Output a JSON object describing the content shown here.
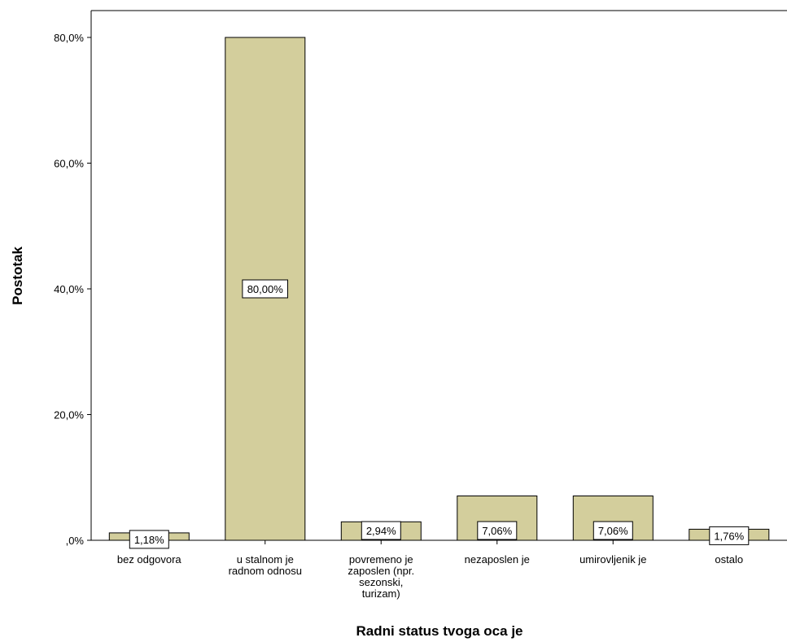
{
  "chart_data": {
    "type": "bar",
    "xlabel": "Radni status tvoga oca je",
    "ylabel": "Postotak",
    "ylim": [
      0,
      80
    ],
    "yticks": [
      {
        "value": 0,
        "label": ",0%"
      },
      {
        "value": 20,
        "label": "20,0%"
      },
      {
        "value": 40,
        "label": "40,0%"
      },
      {
        "value": 60,
        "label": "60,0%"
      },
      {
        "value": 80,
        "label": "80,0%"
      }
    ],
    "categories": [
      "bez odgovora",
      "u stalnom je radnom odnosu",
      "povremeno je zaposlen (npr. sezonski, turizam)",
      "nezaposlen je",
      "umirovljenik je",
      "ostalo"
    ],
    "category_lines": [
      [
        "bez odgovora"
      ],
      [
        "u stalnom je",
        "radnom odnosu"
      ],
      [
        "povremeno je",
        "zaposlen (npr.",
        "sezonski,",
        "turizam)"
      ],
      [
        "nezaposlen je"
      ],
      [
        "umirovljenik je"
      ],
      [
        "ostalo"
      ]
    ],
    "values": [
      1.18,
      80.0,
      2.94,
      7.06,
      7.06,
      1.76
    ],
    "data_labels": [
      "1,18%",
      "80,00%",
      "2,94%",
      "7,06%",
      "7,06%",
      "1,76%"
    ],
    "bar_color": "#d3ce9c",
    "grid": false
  }
}
